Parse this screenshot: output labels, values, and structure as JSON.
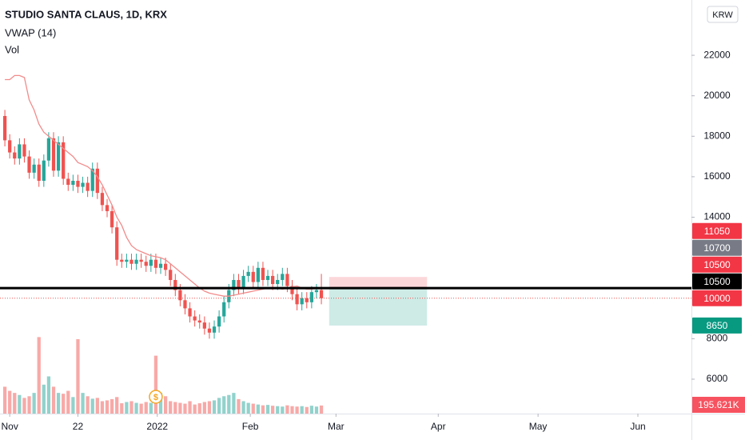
{
  "chart_data": {
    "type": "candlestick",
    "title": "STUDIO SANTA CLAUS, 1D, KRX",
    "indicators": [
      "VWAP (14)",
      "Vol"
    ],
    "currency": "KRW",
    "up_color": "#26a69a",
    "down_color": "#ef5350",
    "vwap_color": "#f28b8b",
    "open": [
      19000,
      17800,
      17200,
      16900,
      17600,
      17000,
      16200,
      16600,
      15800,
      16800,
      17900,
      16300,
      17700,
      15900,
      15600,
      15800,
      15500,
      15700,
      15300,
      16400,
      15200,
      14600,
      14300,
      13500,
      11900,
      11800,
      11900,
      11700,
      11900,
      11800,
      11600,
      11900,
      11500,
      11700,
      11400,
      10900,
      10400,
      9900,
      9500,
      9100,
      8900,
      8800,
      8500,
      8300,
      8600,
      9100,
      9800,
      10400,
      10900,
      10500,
      11100,
      11300,
      10800,
      11500,
      10900,
      11100,
      10700,
      10900,
      11200,
      10600,
      10200,
      9700,
      10000,
      9800,
      10300,
      10400
    ],
    "high": [
      19300,
      18100,
      17500,
      17900,
      17900,
      17300,
      16900,
      16900,
      17100,
      18200,
      18200,
      18000,
      18000,
      16200,
      16100,
      16100,
      16000,
      16000,
      16700,
      16700,
      15500,
      14900,
      14600,
      13800,
      12200,
      12200,
      12200,
      12200,
      12200,
      12100,
      12200,
      12200,
      12000,
      12000,
      11700,
      11200,
      10700,
      10200,
      9800,
      9400,
      9200,
      9100,
      8800,
      8900,
      9400,
      10100,
      10700,
      11200,
      11200,
      11400,
      11600,
      11600,
      11800,
      11800,
      11400,
      11400,
      11200,
      11500,
      11500,
      10900,
      10500,
      10300,
      10300,
      10600,
      10700,
      11200
    ],
    "low": [
      17500,
      16900,
      16600,
      16600,
      16700,
      15900,
      15900,
      15500,
      15500,
      16500,
      16000,
      16000,
      15600,
      15300,
      15300,
      15200,
      15200,
      15000,
      15000,
      14900,
      14300,
      14000,
      13200,
      11600,
      11500,
      11500,
      11400,
      11400,
      11500,
      11300,
      11300,
      11200,
      11200,
      11100,
      10600,
      10100,
      9600,
      9200,
      8800,
      8600,
      8500,
      8200,
      8000,
      8000,
      8300,
      8800,
      9500,
      10100,
      10200,
      10200,
      10800,
      10500,
      10500,
      10600,
      10600,
      10400,
      10400,
      10600,
      10300,
      9900,
      9400,
      9400,
      9500,
      9500,
      10000,
      9700
    ],
    "close": [
      17800,
      17200,
      16900,
      17600,
      17000,
      16200,
      16600,
      15800,
      16800,
      17900,
      16300,
      17700,
      15900,
      15600,
      15800,
      15500,
      15700,
      15300,
      16400,
      15200,
      14600,
      14300,
      13500,
      11900,
      11800,
      11900,
      11700,
      11900,
      11800,
      11600,
      11900,
      11500,
      11700,
      11400,
      10900,
      10400,
      9900,
      9500,
      9100,
      8900,
      8800,
      8500,
      8300,
      8600,
      9100,
      9800,
      10400,
      10900,
      10500,
      11100,
      11300,
      10800,
      11500,
      10900,
      11100,
      10700,
      10900,
      11200,
      10600,
      10200,
      9700,
      10000,
      9800,
      10300,
      10400,
      10000
    ],
    "vwap": [
      20800,
      20800,
      21000,
      21000,
      20900,
      19800,
      19300,
      18600,
      18200,
      18000,
      17800,
      17600,
      17400,
      17200,
      17000,
      16700,
      16600,
      16500,
      16300,
      16000,
      15600,
      15100,
      14600,
      14000,
      13600,
      13000,
      12600,
      12400,
      12300,
      12200,
      12100,
      12050,
      12000,
      11900,
      11700,
      11500,
      11300,
      11100,
      10900,
      10700,
      10500,
      10350,
      10250,
      10200,
      10150,
      10100,
      10100,
      10150,
      10200,
      10250,
      10300,
      10350,
      10400,
      10450,
      10500,
      10500,
      10500,
      10450,
      10500,
      10550,
      10600,
      10500,
      10450,
      10450,
      10500,
      10500
    ],
    "volume": [
      650000,
      550000,
      500000,
      450000,
      380000,
      420000,
      500000,
      1850000,
      700000,
      900000,
      650000,
      500000,
      480000,
      550000,
      400000,
      1800000,
      500000,
      420000,
      360000,
      380000,
      300000,
      320000,
      350000,
      400000,
      250000,
      280000,
      300000,
      260000,
      240000,
      280000,
      260000,
      1400000,
      500000,
      420000,
      300000,
      280000,
      260000,
      240000,
      300000,
      220000,
      250000,
      280000,
      300000,
      320000,
      380000,
      420000,
      450000,
      500000,
      350000,
      300000,
      260000,
      240000,
      220000,
      200000,
      210000,
      190000,
      180000,
      170000,
      200000,
      180000,
      170000,
      180000,
      160000,
      190000,
      170000,
      195621
    ],
    "volume_label": "195.621K",
    "volume_lim": [
      0,
      10000000
    ],
    "dividend_icon": "$",
    "dividend_index": 31,
    "xlim": [
      -1,
      141
    ],
    "xticks": [
      {
        "value": 1,
        "label": "Nov"
      },
      {
        "value": 15,
        "label": "22"
      },
      {
        "value": 31.3,
        "label": "2022"
      },
      {
        "value": 50.4,
        "label": "Feb"
      },
      {
        "value": 68,
        "label": "Mar"
      },
      {
        "value": 89,
        "label": "Apr"
      },
      {
        "value": 109.5,
        "label": "May"
      },
      {
        "value": 130,
        "label": "Jun"
      }
    ],
    "ylim": [
      4300,
      24730
    ],
    "yticks": [
      6000,
      8000,
      14000,
      16000,
      18000,
      20000,
      22000
    ],
    "level_line": 10500,
    "last_price_line": 10000,
    "position": {
      "stop": 11050,
      "entry": 10500,
      "target": 8650,
      "start": 66.6,
      "end": 86.7
    },
    "price_tags": [
      {
        "value": 11050,
        "color": "#f23645"
      },
      {
        "value": 10700,
        "color": "#787b86"
      },
      {
        "value": 10500,
        "color": "#000000"
      },
      {
        "value": 10500,
        "color": "#f23645"
      },
      {
        "value": 10000,
        "color": "#f23645"
      },
      {
        "value": 8650,
        "color": "#089981"
      }
    ]
  }
}
